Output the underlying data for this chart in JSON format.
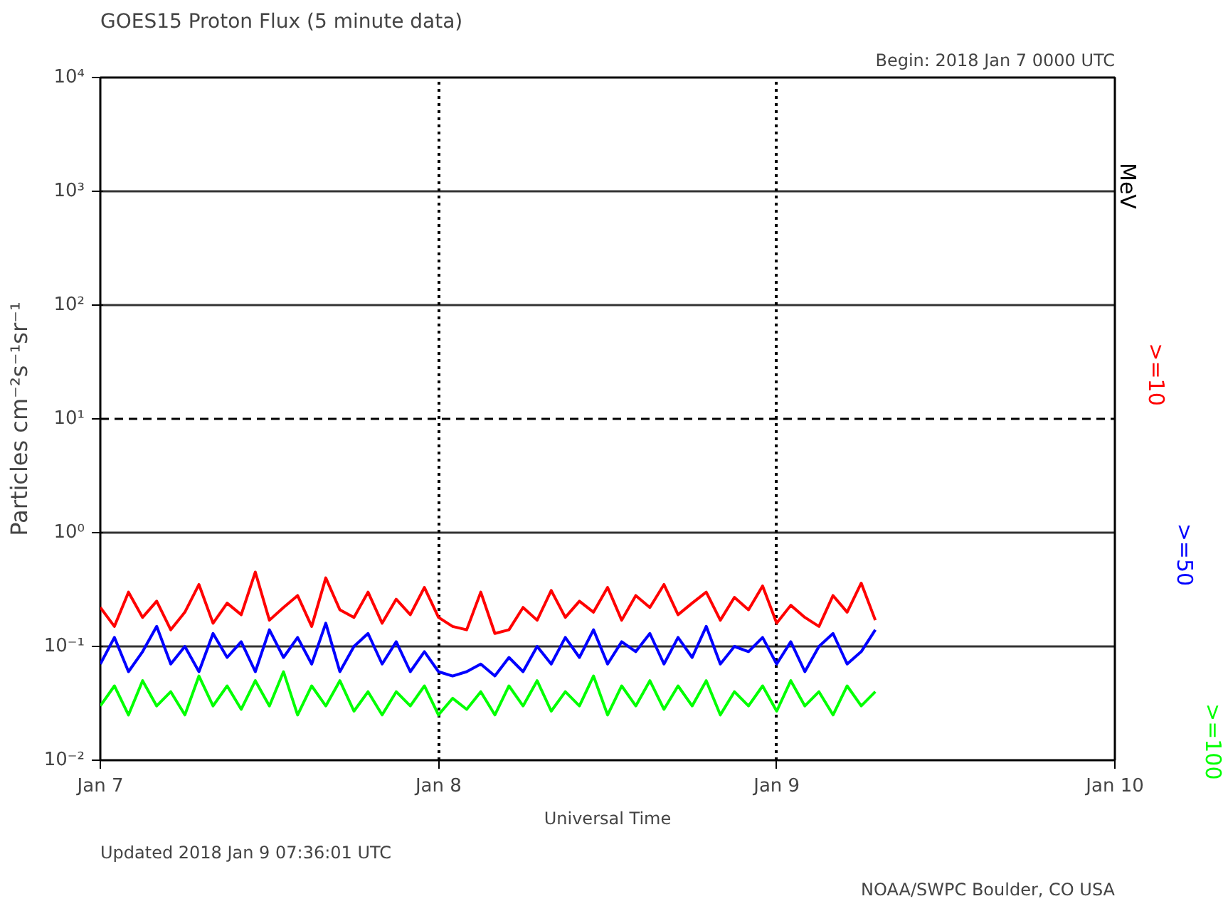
{
  "chart_data": {
    "type": "line",
    "title": "GOES15 Proton Flux (5 minute data)",
    "xlabel": "Universal Time",
    "ylabel": "Particles cm⁻²s⁻¹sr⁻¹",
    "legend_title": "MeV",
    "annotations": [
      "Begin: 2018 Jan 7 0000 UTC",
      "Updated 2018 Jan  9 07:36:01 UTC",
      "NOAA/SWPC Boulder, CO USA"
    ],
    "log": "y",
    "grid": true,
    "xlim": [
      "2018-01-07",
      "2018-01-10"
    ],
    "xticks": [
      {
        "value": "2018-01-07",
        "label": "Jan 7"
      },
      {
        "value": "2018-01-08",
        "label": "Jan 8"
      },
      {
        "value": "2018-01-09",
        "label": "Jan 9"
      },
      {
        "value": "2018-01-10",
        "label": "Jan 10"
      }
    ],
    "ylim": [
      0.01,
      10000
    ],
    "yticks": [
      {
        "value": 0.01,
        "label": "10⁻²"
      },
      {
        "value": 0.1,
        "label": "10⁻¹"
      },
      {
        "value": 1,
        "label": "10⁰"
      },
      {
        "value": 10,
        "label": "10¹"
      },
      {
        "value": 100,
        "label": "10²"
      },
      {
        "value": 1000,
        "label": "10³"
      },
      {
        "value": 10000,
        "label": "10⁴"
      }
    ],
    "ref_lines": [
      {
        "axis": "y",
        "value": 10,
        "line_style": "dashed",
        "color": "#000000"
      }
    ],
    "x": [
      "2018-01-07T00:00",
      "2018-01-07T01:00",
      "2018-01-07T02:00",
      "2018-01-07T03:00",
      "2018-01-07T04:00",
      "2018-01-07T05:00",
      "2018-01-07T06:00",
      "2018-01-07T07:00",
      "2018-01-07T08:00",
      "2018-01-07T09:00",
      "2018-01-07T10:00",
      "2018-01-07T11:00",
      "2018-01-07T12:00",
      "2018-01-07T13:00",
      "2018-01-07T14:00",
      "2018-01-07T15:00",
      "2018-01-07T16:00",
      "2018-01-07T17:00",
      "2018-01-07T18:00",
      "2018-01-07T19:00",
      "2018-01-07T20:00",
      "2018-01-07T21:00",
      "2018-01-07T22:00",
      "2018-01-07T23:00",
      "2018-01-08T00:00",
      "2018-01-08T01:00",
      "2018-01-08T02:00",
      "2018-01-08T03:00",
      "2018-01-08T04:00",
      "2018-01-08T05:00",
      "2018-01-08T06:00",
      "2018-01-08T07:00",
      "2018-01-08T08:00",
      "2018-01-08T09:00",
      "2018-01-08T10:00",
      "2018-01-08T11:00",
      "2018-01-08T12:00",
      "2018-01-08T13:00",
      "2018-01-08T14:00",
      "2018-01-08T15:00",
      "2018-01-08T16:00",
      "2018-01-08T17:00",
      "2018-01-08T18:00",
      "2018-01-08T19:00",
      "2018-01-08T20:00",
      "2018-01-08T21:00",
      "2018-01-08T22:00",
      "2018-01-08T23:00",
      "2018-01-09T00:00",
      "2018-01-09T01:00",
      "2018-01-09T02:00",
      "2018-01-09T03:00",
      "2018-01-09T04:00",
      "2018-01-09T05:00",
      "2018-01-09T06:00",
      "2018-01-09T07:00"
    ],
    "series": [
      {
        "name": ">=10",
        "color": "#ff0000",
        "values": [
          0.22,
          0.15,
          0.3,
          0.18,
          0.25,
          0.14,
          0.2,
          0.35,
          0.16,
          0.24,
          0.19,
          0.45,
          0.17,
          0.22,
          0.28,
          0.15,
          0.4,
          0.21,
          0.18,
          0.3,
          0.16,
          0.26,
          0.19,
          0.33,
          0.18,
          0.15,
          0.14,
          0.3,
          0.13,
          0.14,
          0.22,
          0.17,
          0.31,
          0.18,
          0.25,
          0.2,
          0.33,
          0.17,
          0.28,
          0.22,
          0.35,
          0.19,
          0.24,
          0.3,
          0.17,
          0.27,
          0.21,
          0.34,
          0.16,
          0.23,
          0.18,
          0.15,
          0.28,
          0.2,
          0.36,
          0.17
        ]
      },
      {
        "name": ">=50",
        "color": "#0000ff",
        "values": [
          0.07,
          0.12,
          0.06,
          0.09,
          0.15,
          0.07,
          0.1,
          0.06,
          0.13,
          0.08,
          0.11,
          0.06,
          0.14,
          0.08,
          0.12,
          0.07,
          0.16,
          0.06,
          0.1,
          0.13,
          0.07,
          0.11,
          0.06,
          0.09,
          0.06,
          0.055,
          0.06,
          0.07,
          0.055,
          0.08,
          0.06,
          0.1,
          0.07,
          0.12,
          0.08,
          0.14,
          0.07,
          0.11,
          0.09,
          0.13,
          0.07,
          0.12,
          0.08,
          0.15,
          0.07,
          0.1,
          0.09,
          0.12,
          0.07,
          0.11,
          0.06,
          0.1,
          0.13,
          0.07,
          0.09,
          0.14
        ]
      },
      {
        "name": ">=100",
        "color": "#00ff00",
        "values": [
          0.03,
          0.045,
          0.025,
          0.05,
          0.03,
          0.04,
          0.025,
          0.055,
          0.03,
          0.045,
          0.028,
          0.05,
          0.03,
          0.06,
          0.025,
          0.045,
          0.03,
          0.05,
          0.027,
          0.04,
          0.025,
          0.04,
          0.03,
          0.045,
          0.025,
          0.035,
          0.028,
          0.04,
          0.025,
          0.045,
          0.03,
          0.05,
          0.027,
          0.04,
          0.03,
          0.055,
          0.025,
          0.045,
          0.03,
          0.05,
          0.028,
          0.045,
          0.03,
          0.05,
          0.025,
          0.04,
          0.03,
          0.045,
          0.027,
          0.05,
          0.03,
          0.04,
          0.025,
          0.045,
          0.03,
          0.04
        ]
      }
    ]
  }
}
